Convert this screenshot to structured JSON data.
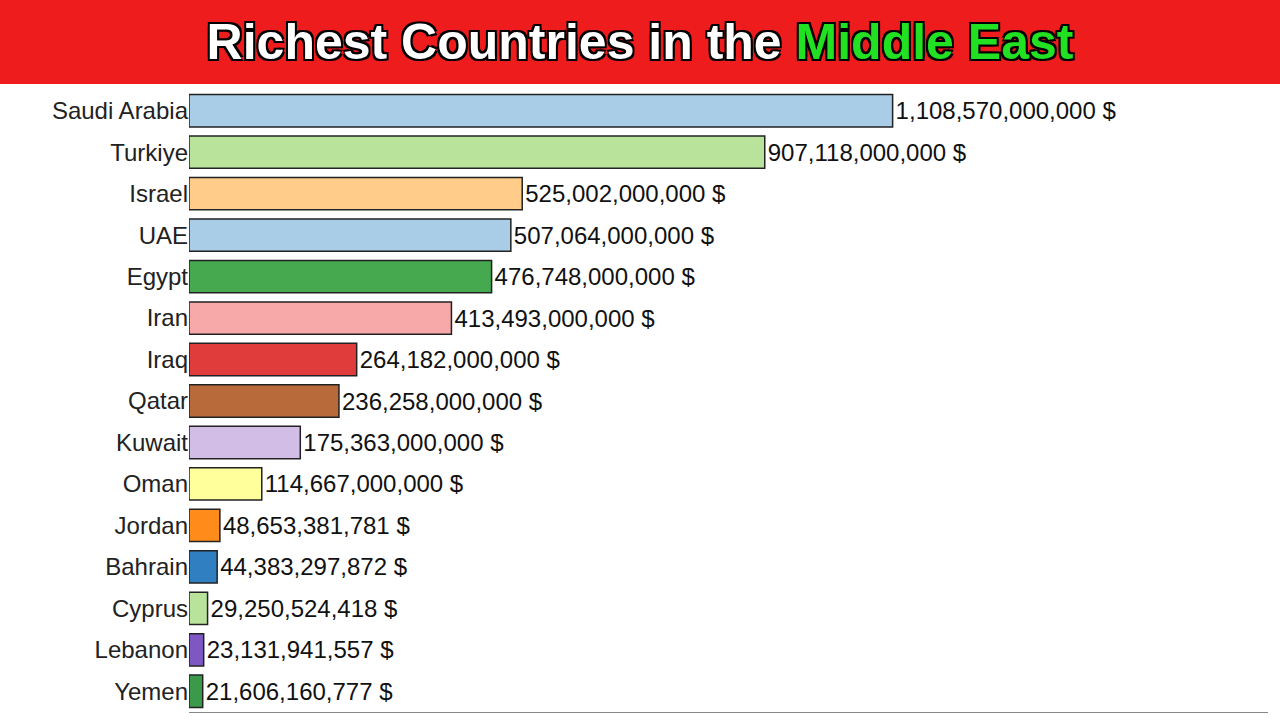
{
  "chart_data": {
    "type": "bar",
    "title": "Richest Countries in the Middle East",
    "orientation": "horizontal",
    "categories": [
      "Saudi Arabia",
      "Turkiye",
      "Israel",
      "UAE",
      "Egypt",
      "Iran",
      "Iraq",
      "Qatar",
      "Kuwait",
      "Oman",
      "Jordan",
      "Bahrain",
      "Cyprus",
      "Lebanon",
      "Yemen"
    ],
    "values": [
      1108570000000,
      907118000000,
      525002000000,
      507064000000,
      476748000000,
      413493000000,
      264182000000,
      236258000000,
      175363000000,
      114667000000,
      48653381781,
      44383297872,
      29250524418,
      23131941557,
      21606160777
    ],
    "value_labels": [
      "1,108,570,000,000 $",
      "907,118,000,000 $",
      "525,002,000,000 $",
      "507,064,000,000 $",
      "476,748,000,000 $",
      "413,493,000,000 $",
      "264,182,000,000 $",
      "236,258,000,000 $",
      "175,363,000,000 $",
      "114,667,000,000 $",
      "48,653,381,781 $",
      "44,383,297,872 $",
      "29,250,524,418 $",
      "23,131,941,557 $",
      "21,606,160,777 $"
    ],
    "colors": [
      "#a9cde6",
      "#b9e29b",
      "#ffcc8a",
      "#a9cde6",
      "#46a84f",
      "#f7a8a8",
      "#e03c3c",
      "#b86a3a",
      "#d2bde6",
      "#ffff9c",
      "#ff8c1a",
      "#2f7fc1",
      "#b9e29b",
      "#7e57c2",
      "#3a9a4a"
    ],
    "xlim": [
      0,
      1700000000000
    ],
    "xticks": [],
    "data_labels": true,
    "tick_labels": "y",
    "grid": false
  }
}
